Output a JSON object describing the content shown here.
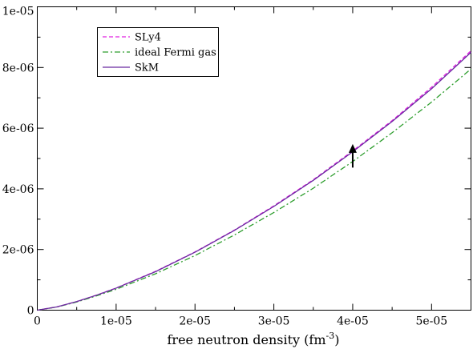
{
  "chart_data": {
    "type": "line",
    "title": "",
    "xlabel": "free neutron density (fm",
    "xlabel_superscript": "-3",
    "xlabel_suffix": ")",
    "ylabel": "",
    "xlim": [
      0,
      5.5e-05
    ],
    "ylim": [
      0,
      1e-05
    ],
    "x_ticks": [
      0,
      1e-05,
      2e-05,
      3e-05,
      4e-05,
      5e-05
    ],
    "x_tick_labels": [
      "0",
      "1e-05",
      "2e-05",
      "3e-05",
      "4e-05",
      "5e-05"
    ],
    "y_ticks": [
      0,
      2e-06,
      4e-06,
      6e-06,
      8e-06,
      1e-05
    ],
    "y_tick_labels": [
      "0",
      "2e-06",
      "4e-06",
      "6e-06",
      "8e-06",
      "1e-05"
    ],
    "grid": false,
    "legend_position": "top-left",
    "series": [
      {
        "name": "SLy4",
        "color": "#e020e0",
        "dash": "dashed",
        "x": [
          0,
          2.5e-06,
          5e-06,
          7.5e-06,
          1e-05,
          1.5e-05,
          2e-05,
          2.5e-05,
          3e-05,
          3.5e-05,
          4e-05,
          4.5e-05,
          5e-05,
          5.5e-05
        ],
        "y": [
          0,
          1.1e-07,
          2.85e-07,
          4.95e-07,
          7.3e-07,
          1.28e-06,
          1.92e-06,
          2.64e-06,
          3.44e-06,
          4.3e-06,
          5.25e-06,
          6.25e-06,
          7.35e-06,
          8.55e-06
        ]
      },
      {
        "name": "ideal Fermi gas",
        "color": "#2e9e2e",
        "dash": "dashdot",
        "x": [
          0,
          2.5e-06,
          5e-06,
          7.5e-06,
          1e-05,
          1.5e-05,
          2e-05,
          2.5e-05,
          3e-05,
          3.5e-05,
          4e-05,
          4.5e-05,
          5e-05,
          5.5e-05
        ],
        "y": [
          0,
          1.05e-07,
          2.7e-07,
          4.7e-07,
          6.9e-07,
          1.2e-06,
          1.8e-06,
          2.48e-06,
          3.22e-06,
          4.02e-06,
          4.9e-06,
          5.85e-06,
          6.86e-06,
          7.95e-06
        ]
      },
      {
        "name": "SkM",
        "color": "#6a2aa0",
        "dash": "solid",
        "x": [
          0,
          2.5e-06,
          5e-06,
          7.5e-06,
          1e-05,
          1.5e-05,
          2e-05,
          2.5e-05,
          3e-05,
          3.5e-05,
          4e-05,
          4.5e-05,
          5e-05,
          5.5e-05
        ],
        "y": [
          0,
          1.1e-07,
          2.84e-07,
          4.93e-07,
          7.27e-07,
          1.27e-06,
          1.91e-06,
          2.63e-06,
          3.42e-06,
          4.28e-06,
          5.22e-06,
          6.22e-06,
          7.3e-06,
          8.5e-06
        ]
      }
    ],
    "annotations": [
      {
        "type": "arrow",
        "direction": "up",
        "x": 4e-05,
        "y_from": 4.7e-06,
        "y_to": 5.4e-06
      }
    ]
  }
}
